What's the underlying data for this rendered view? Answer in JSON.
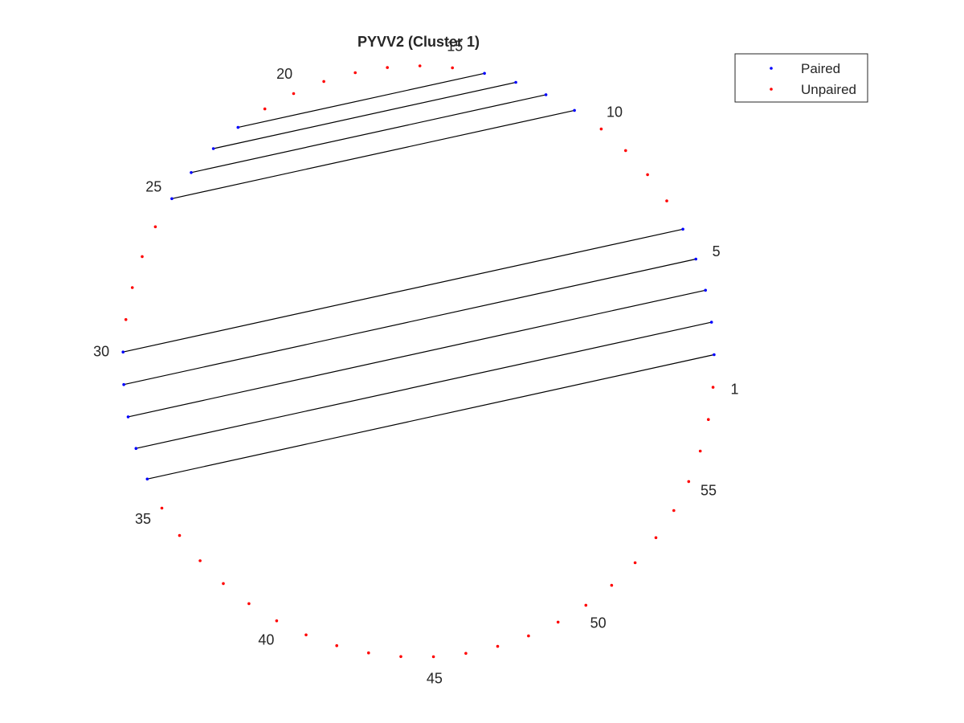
{
  "chart_data": {
    "type": "scatter",
    "title": "PYVV2 (Cluster 1)",
    "sequence_length": 57,
    "start_angle_deg": -5,
    "angle_direction": "counterclockwise",
    "index_labels": [
      1,
      5,
      10,
      15,
      20,
      25,
      30,
      35,
      40,
      45,
      50,
      55
    ],
    "pairs": [
      [
        2,
        34
      ],
      [
        3,
        33
      ],
      [
        4,
        32
      ],
      [
        5,
        31
      ],
      [
        6,
        30
      ],
      [
        11,
        25
      ],
      [
        12,
        24
      ],
      [
        13,
        23
      ],
      [
        14,
        22
      ]
    ],
    "legend": {
      "placement": "top-right",
      "entries": [
        {
          "label": "Paired",
          "color": "#0000ff"
        },
        {
          "label": "Unpaired",
          "color": "#ff0000"
        }
      ]
    },
    "colors": {
      "paired": "#0000ff",
      "unpaired": "#ff0000",
      "line": "#000000"
    }
  }
}
